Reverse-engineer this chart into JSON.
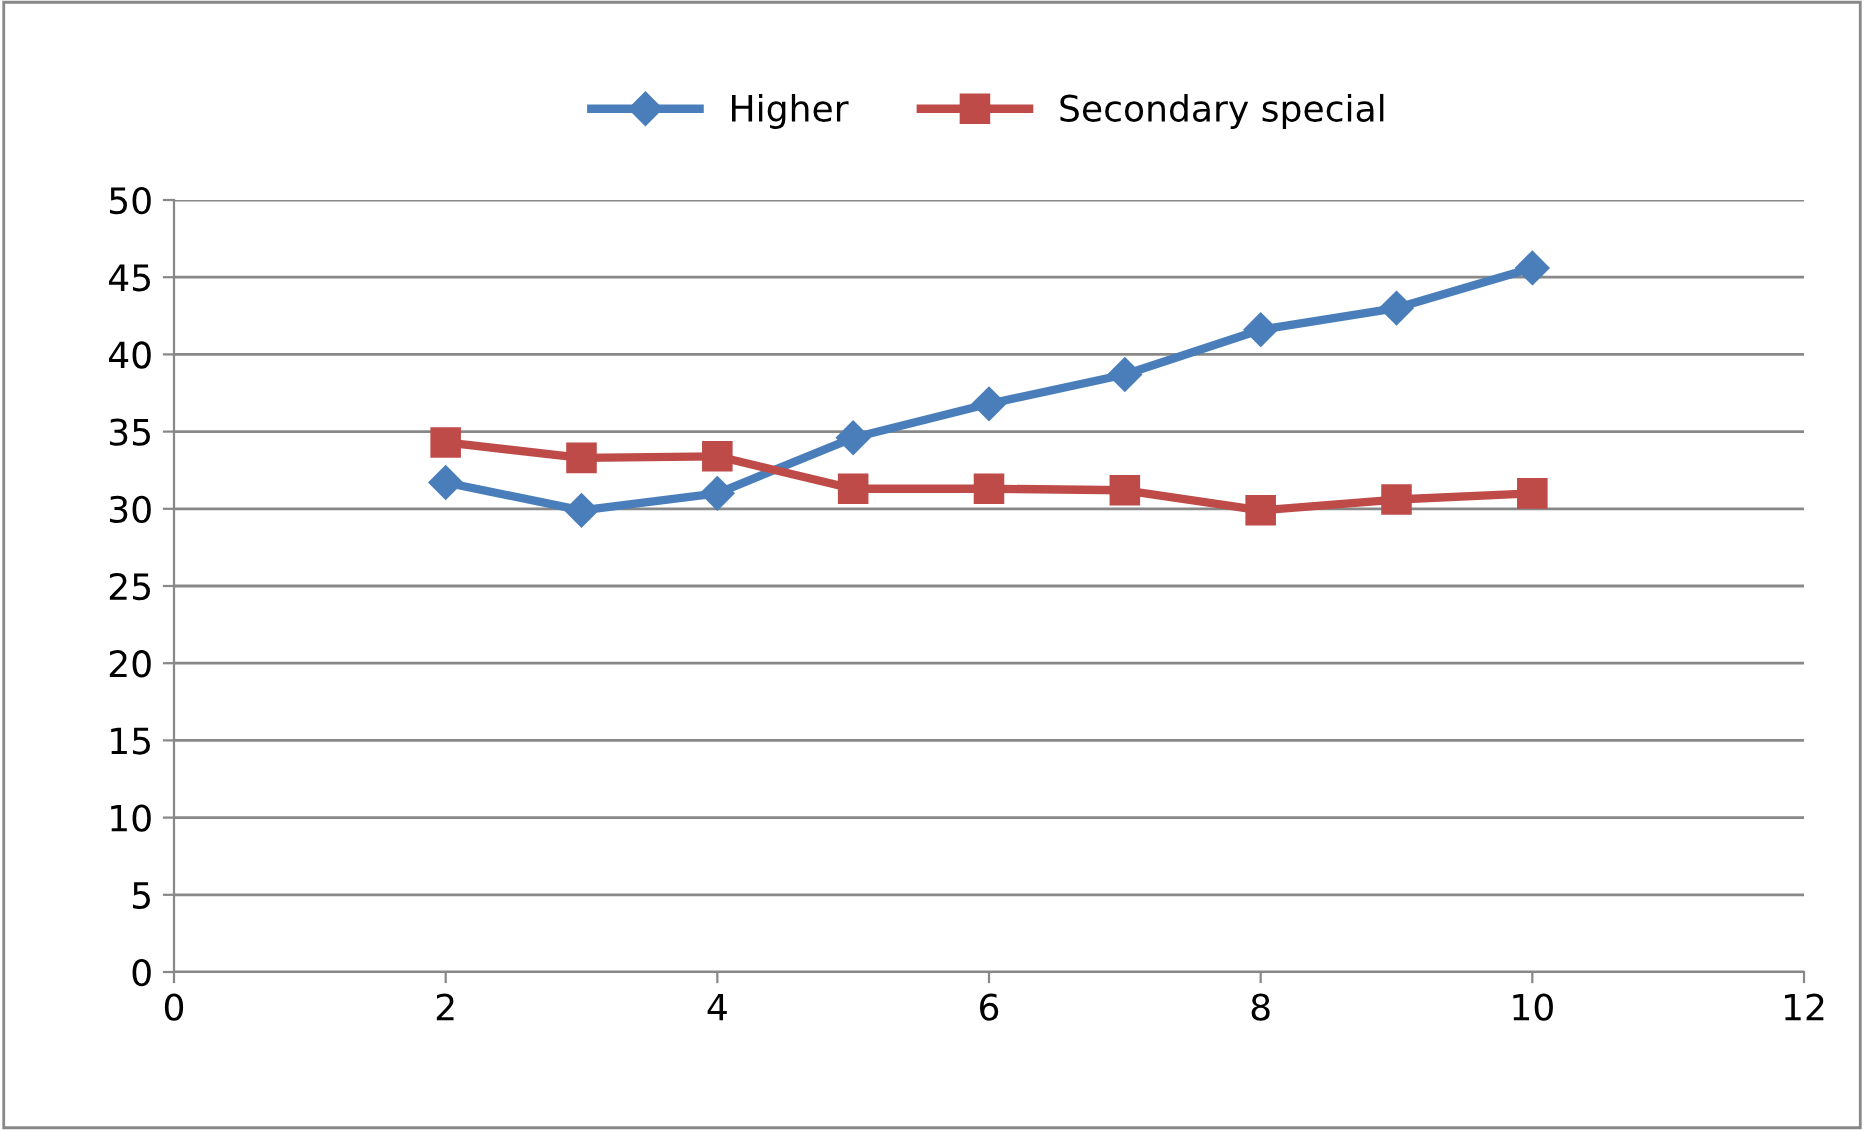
{
  "chart_data": {
    "type": "line",
    "x": [
      2,
      3,
      4,
      5,
      6,
      7,
      8,
      9,
      10
    ],
    "series": [
      {
        "name": "Higher",
        "color": "#4a7ebb",
        "marker": "diamond",
        "values": [
          31.7,
          29.9,
          31.0,
          34.6,
          36.8,
          38.7,
          41.6,
          43.0,
          45.6
        ]
      },
      {
        "name": "Secondary special",
        "color": "#be4b48",
        "marker": "square",
        "values": [
          34.3,
          33.3,
          33.4,
          31.3,
          31.3,
          31.2,
          29.9,
          30.6,
          31.0
        ]
      }
    ],
    "xlim": [
      0,
      12
    ],
    "xticks": [
      0,
      2,
      4,
      6,
      8,
      10,
      12
    ],
    "ylim": [
      0,
      50
    ],
    "yticks": [
      0,
      5,
      10,
      15,
      20,
      25,
      30,
      35,
      40,
      45,
      50
    ],
    "grid": "y",
    "legend": "top",
    "line_style": "solid"
  }
}
